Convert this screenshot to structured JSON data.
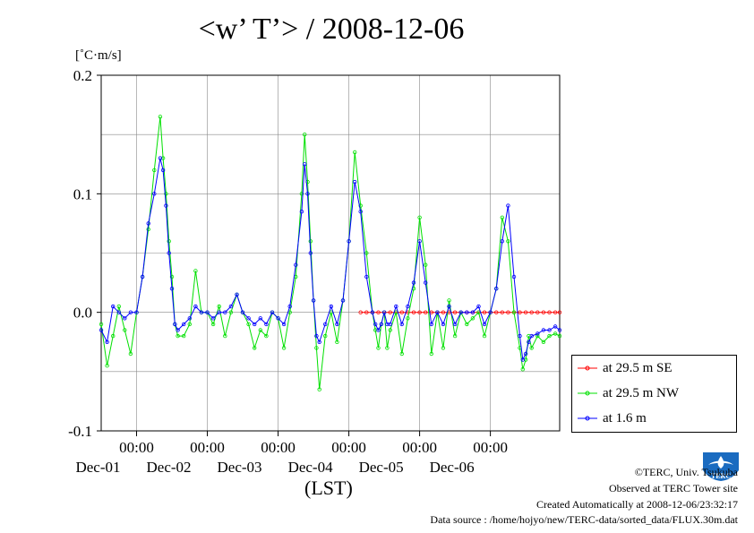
{
  "chart_data": {
    "type": "line",
    "title": "<w’ T’> / 2008-12-06",
    "ylabel": "[˚C·m/s]",
    "xlabel": "(LST)",
    "ylim": [
      -0.1,
      0.2
    ],
    "y_ticks": [
      {
        "value": 0.2,
        "label": "0.2"
      },
      {
        "value": 0.1,
        "label": "0.1"
      },
      {
        "value": 0.0,
        "label": "0.0"
      },
      {
        "value": -0.1,
        "label": "-0.1"
      }
    ],
    "x_range_days": [
      "2008-11-30 12:00",
      "2008-12-06 23:30"
    ],
    "x_ticks": [
      {
        "datetime": "2008-12-01 00:00",
        "time_label": "00:00",
        "date_label": "Dec-01"
      },
      {
        "datetime": "2008-12-02 00:00",
        "time_label": "00:00",
        "date_label": "Dec-02"
      },
      {
        "datetime": "2008-12-03 00:00",
        "time_label": "00:00",
        "date_label": "Dec-03"
      },
      {
        "datetime": "2008-12-04 00:00",
        "time_label": "00:00",
        "date_label": "Dec-04"
      },
      {
        "datetime": "2008-12-05 00:00",
        "time_label": "00:00",
        "date_label": "Dec-05"
      },
      {
        "datetime": "2008-12-06 00:00",
        "time_label": "00:00",
        "date_label": "Dec-06"
      }
    ],
    "grid": true,
    "legend_position": "bottom-right outside",
    "series": [
      {
        "name": "at 29.5 m SE",
        "color": "#ff0000",
        "x": [
          "2008-12-04 04:00",
          "2008-12-04 06:00",
          "2008-12-04 08:00",
          "2008-12-04 10:00",
          "2008-12-04 12:00",
          "2008-12-04 14:00",
          "2008-12-04 16:00",
          "2008-12-04 18:00",
          "2008-12-04 20:00",
          "2008-12-04 22:00",
          "2008-12-05 00:00",
          "2008-12-05 02:00",
          "2008-12-05 04:00",
          "2008-12-05 06:00",
          "2008-12-05 08:00",
          "2008-12-05 10:00",
          "2008-12-05 12:00",
          "2008-12-05 14:00",
          "2008-12-05 16:00",
          "2008-12-05 18:00",
          "2008-12-05 20:00",
          "2008-12-05 22:00",
          "2008-12-06 00:00",
          "2008-12-06 02:00",
          "2008-12-06 04:00",
          "2008-12-06 06:00",
          "2008-12-06 08:00",
          "2008-12-06 10:00",
          "2008-12-06 12:00",
          "2008-12-06 14:00",
          "2008-12-06 16:00",
          "2008-12-06 18:00",
          "2008-12-06 20:00",
          "2008-12-06 22:00",
          "2008-12-06 23:30"
        ],
        "y": [
          0,
          0,
          0,
          0,
          0,
          0,
          0,
          0,
          0,
          0,
          0,
          0,
          0,
          0,
          0,
          0,
          0,
          0,
          0,
          0,
          0,
          0,
          0,
          0,
          0,
          0,
          0,
          0,
          0,
          0,
          0,
          0,
          0,
          0,
          0
        ]
      },
      {
        "name": "at 29.5 m NW",
        "color": "#00e000",
        "x": [
          "2008-11-30 12:00",
          "2008-11-30 14:00",
          "2008-11-30 16:00",
          "2008-11-30 18:00",
          "2008-11-30 20:00",
          "2008-11-30 22:00",
          "2008-12-01 00:00",
          "2008-12-01 02:00",
          "2008-12-01 04:00",
          "2008-12-01 06:00",
          "2008-12-01 08:00",
          "2008-12-01 09:00",
          "2008-12-01 10:00",
          "2008-12-01 11:00",
          "2008-12-01 12:00",
          "2008-12-01 13:00",
          "2008-12-01 14:00",
          "2008-12-01 16:00",
          "2008-12-01 18:00",
          "2008-12-01 20:00",
          "2008-12-01 22:00",
          "2008-12-02 00:00",
          "2008-12-02 02:00",
          "2008-12-02 04:00",
          "2008-12-02 06:00",
          "2008-12-02 08:00",
          "2008-12-02 10:00",
          "2008-12-02 12:00",
          "2008-12-02 14:00",
          "2008-12-02 16:00",
          "2008-12-02 18:00",
          "2008-12-02 20:00",
          "2008-12-02 22:00",
          "2008-12-03 00:00",
          "2008-12-03 02:00",
          "2008-12-03 04:00",
          "2008-12-03 06:00",
          "2008-12-03 08:00",
          "2008-12-03 09:00",
          "2008-12-03 10:00",
          "2008-12-03 11:00",
          "2008-12-03 12:00",
          "2008-12-03 13:00",
          "2008-12-03 14:00",
          "2008-12-03 16:00",
          "2008-12-03 18:00",
          "2008-12-03 20:00",
          "2008-12-03 22:00",
          "2008-12-04 00:00",
          "2008-12-04 02:00",
          "2008-12-04 04:00",
          "2008-12-04 06:00",
          "2008-12-04 08:00",
          "2008-12-04 09:00",
          "2008-12-04 10:00",
          "2008-12-04 11:00",
          "2008-12-04 12:00",
          "2008-12-04 13:00",
          "2008-12-04 14:00",
          "2008-12-04 16:00",
          "2008-12-04 18:00",
          "2008-12-04 20:00",
          "2008-12-04 22:00",
          "2008-12-05 00:00",
          "2008-12-05 02:00",
          "2008-12-05 04:00",
          "2008-12-05 06:00",
          "2008-12-05 08:00",
          "2008-12-05 10:00",
          "2008-12-05 12:00",
          "2008-12-05 14:00",
          "2008-12-05 16:00",
          "2008-12-05 18:00",
          "2008-12-05 20:00",
          "2008-12-05 22:00",
          "2008-12-06 00:00",
          "2008-12-06 02:00",
          "2008-12-06 04:00",
          "2008-12-06 06:00",
          "2008-12-06 08:00",
          "2008-12-06 10:00",
          "2008-12-06 11:00",
          "2008-12-06 12:00",
          "2008-12-06 13:00",
          "2008-12-06 14:00",
          "2008-12-06 16:00",
          "2008-12-06 18:00",
          "2008-12-06 20:00",
          "2008-12-06 22:00",
          "2008-12-06 23:30"
        ],
        "y": [
          -0.01,
          -0.045,
          -0.02,
          0.005,
          -0.015,
          -0.035,
          0.0,
          0.03,
          0.07,
          0.12,
          0.165,
          0.13,
          0.1,
          0.06,
          0.03,
          -0.01,
          -0.02,
          -0.02,
          -0.01,
          0.035,
          0.0,
          0.0,
          -0.01,
          0.005,
          -0.02,
          0.0,
          0.015,
          0.0,
          -0.01,
          -0.03,
          -0.015,
          -0.02,
          0.0,
          -0.005,
          -0.03,
          0.0,
          0.03,
          0.1,
          0.15,
          0.11,
          0.06,
          0.01,
          -0.03,
          -0.065,
          -0.02,
          0.0,
          -0.025,
          0.01,
          0.06,
          0.135,
          0.09,
          0.05,
          0.0,
          -0.015,
          -0.03,
          -0.01,
          0.0,
          -0.03,
          -0.015,
          0.0,
          -0.035,
          -0.005,
          0.02,
          0.08,
          0.04,
          -0.035,
          0.0,
          -0.03,
          0.01,
          -0.02,
          0.0,
          -0.01,
          -0.005,
          0.0,
          -0.02,
          0.0,
          0.02,
          0.08,
          0.06,
          0.0,
          -0.03,
          -0.048,
          -0.04,
          -0.02,
          -0.03,
          -0.02,
          -0.025,
          -0.02,
          -0.018,
          -0.02
        ]
      },
      {
        "name": "at 1.6 m",
        "color": "#0000ff",
        "x": [
          "2008-11-30 12:00",
          "2008-11-30 14:00",
          "2008-11-30 16:00",
          "2008-11-30 18:00",
          "2008-11-30 20:00",
          "2008-11-30 22:00",
          "2008-12-01 00:00",
          "2008-12-01 02:00",
          "2008-12-01 04:00",
          "2008-12-01 06:00",
          "2008-12-01 08:00",
          "2008-12-01 09:00",
          "2008-12-01 10:00",
          "2008-12-01 11:00",
          "2008-12-01 12:00",
          "2008-12-01 13:00",
          "2008-12-01 14:00",
          "2008-12-01 16:00",
          "2008-12-01 18:00",
          "2008-12-01 20:00",
          "2008-12-01 22:00",
          "2008-12-02 00:00",
          "2008-12-02 02:00",
          "2008-12-02 04:00",
          "2008-12-02 06:00",
          "2008-12-02 08:00",
          "2008-12-02 10:00",
          "2008-12-02 12:00",
          "2008-12-02 14:00",
          "2008-12-02 16:00",
          "2008-12-02 18:00",
          "2008-12-02 20:00",
          "2008-12-02 22:00",
          "2008-12-03 00:00",
          "2008-12-03 02:00",
          "2008-12-03 04:00",
          "2008-12-03 06:00",
          "2008-12-03 08:00",
          "2008-12-03 09:00",
          "2008-12-03 10:00",
          "2008-12-03 11:00",
          "2008-12-03 12:00",
          "2008-12-03 13:00",
          "2008-12-03 14:00",
          "2008-12-03 16:00",
          "2008-12-03 18:00",
          "2008-12-03 20:00",
          "2008-12-03 22:00",
          "2008-12-04 00:00",
          "2008-12-04 02:00",
          "2008-12-04 04:00",
          "2008-12-04 06:00",
          "2008-12-04 08:00",
          "2008-12-04 09:00",
          "2008-12-04 10:00",
          "2008-12-04 11:00",
          "2008-12-04 12:00",
          "2008-12-04 13:00",
          "2008-12-04 14:00",
          "2008-12-04 16:00",
          "2008-12-04 18:00",
          "2008-12-04 20:00",
          "2008-12-04 22:00",
          "2008-12-05 00:00",
          "2008-12-05 02:00",
          "2008-12-05 04:00",
          "2008-12-05 06:00",
          "2008-12-05 08:00",
          "2008-12-05 10:00",
          "2008-12-05 12:00",
          "2008-12-05 14:00",
          "2008-12-05 16:00",
          "2008-12-05 18:00",
          "2008-12-05 20:00",
          "2008-12-05 22:00",
          "2008-12-06 00:00",
          "2008-12-06 02:00",
          "2008-12-06 04:00",
          "2008-12-06 06:00",
          "2008-12-06 08:00",
          "2008-12-06 10:00",
          "2008-12-06 11:00",
          "2008-12-06 12:00",
          "2008-12-06 13:00",
          "2008-12-06 14:00",
          "2008-12-06 16:00",
          "2008-12-06 18:00",
          "2008-12-06 20:00",
          "2008-12-06 22:00",
          "2008-12-06 23:30"
        ],
        "y": [
          -0.015,
          -0.025,
          0.005,
          0.0,
          -0.005,
          0.0,
          0.0,
          0.03,
          0.075,
          0.1,
          0.13,
          0.12,
          0.09,
          0.05,
          0.02,
          -0.01,
          -0.015,
          -0.01,
          -0.005,
          0.005,
          0.0,
          0.0,
          -0.005,
          0.0,
          0.0,
          0.005,
          0.015,
          0.0,
          -0.005,
          -0.01,
          -0.005,
          -0.01,
          0.0,
          -0.005,
          -0.01,
          0.005,
          0.04,
          0.085,
          0.125,
          0.1,
          0.05,
          0.01,
          -0.02,
          -0.025,
          -0.01,
          0.005,
          -0.01,
          0.01,
          0.06,
          0.11,
          0.085,
          0.03,
          0.0,
          -0.01,
          -0.015,
          -0.01,
          0.0,
          -0.01,
          -0.01,
          0.005,
          -0.01,
          0.005,
          0.025,
          0.06,
          0.025,
          -0.01,
          0.0,
          -0.01,
          0.005,
          -0.01,
          0.0,
          0.0,
          0.0,
          0.005,
          -0.01,
          0.0,
          0.02,
          0.06,
          0.09,
          0.03,
          -0.02,
          -0.04,
          -0.035,
          -0.025,
          -0.02,
          -0.018,
          -0.015,
          -0.015,
          -0.012,
          -0.015
        ]
      }
    ]
  },
  "credits": {
    "copyright": "©TERC, Univ. Tsukuba",
    "observed": "Observed at TERC Tower site",
    "created": "Created Automatically at 2008-12-06/23:32:17",
    "source": "Data source : /home/hojyo/new/TERC-data/sorted_data/FLUX.30m.dat"
  },
  "logo": {
    "text": "TERC",
    "color": "#1a6bc0"
  }
}
